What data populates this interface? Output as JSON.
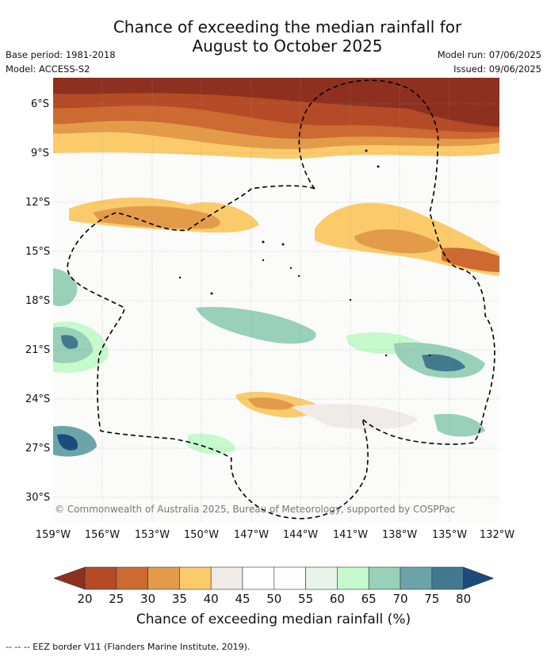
{
  "header": {
    "title_line1": "Chance of exceeding the median rainfall for",
    "title_line2": "August to October 2025",
    "base_period": "Base period: 1981-2018",
    "model": "Model: ACCESS-S2",
    "model_run": "Model run: 07/06/2025",
    "issued": "Issued: 09/06/2025"
  },
  "map": {
    "lat_labels": [
      "6°S",
      "9°S",
      "12°S",
      "15°S",
      "18°S",
      "21°S",
      "24°S",
      "27°S",
      "30°S"
    ],
    "lon_labels": [
      "159°W",
      "156°W",
      "153°W",
      "150°W",
      "147°W",
      "144°W",
      "141°W",
      "138°W",
      "135°W",
      "132°W"
    ],
    "copyright": "© Commonwealth of Australia 2025, Bureau of Meteorology, supported by COSPPac",
    "eez_border_color": "#000000"
  },
  "colorbar": {
    "title": "Chance of exceeding median rainfall (%)",
    "ticks": [
      "20",
      "25",
      "30",
      "35",
      "40",
      "45",
      "50",
      "55",
      "60",
      "65",
      "70",
      "75",
      "80"
    ],
    "colors": [
      "#8e3020",
      "#b54a26",
      "#cc6a31",
      "#e39b4a",
      "#fbcb6b",
      "#f0ebe7",
      "#ffffff",
      "#fcfdfc",
      "#e8f4e9",
      "#c6f9cb",
      "#98d0b9",
      "#6aa4a8",
      "#42798f",
      "#1b4a7c"
    ]
  },
  "footnote": "--  --  -- EEZ border V11 (Flanders Marine Institute, 2019)."
}
